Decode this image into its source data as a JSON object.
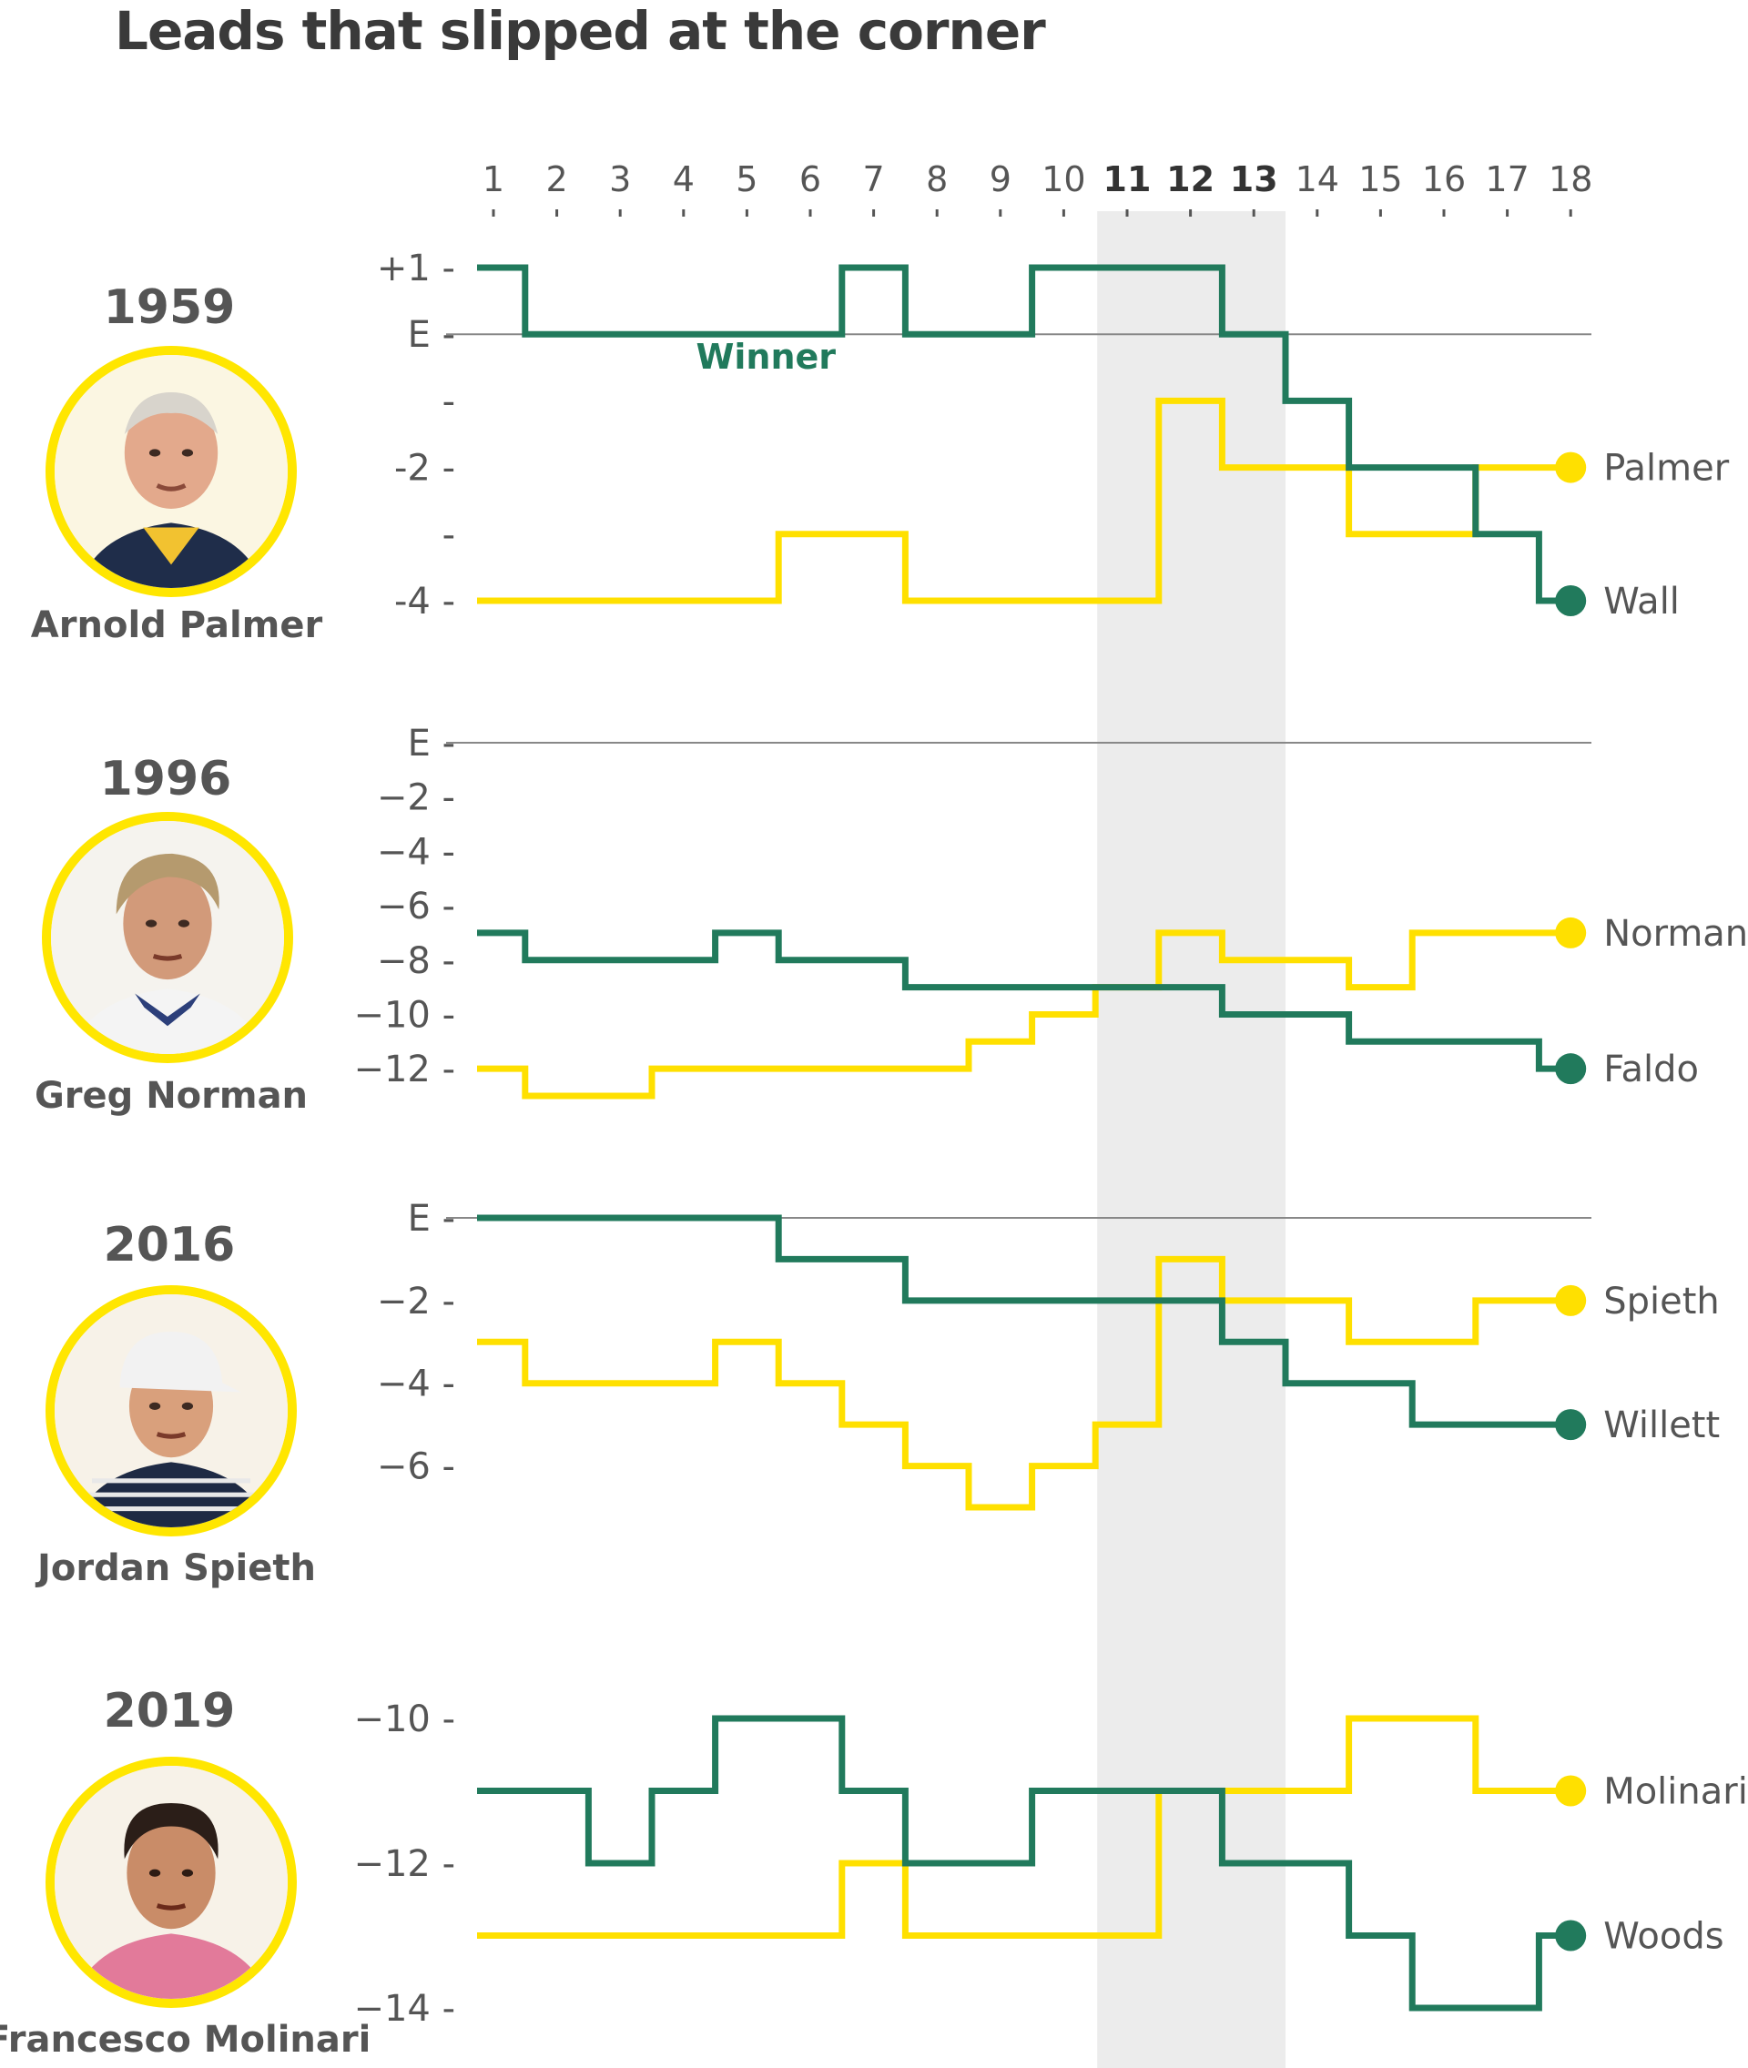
{
  "title": "Leads that slipped at the corner",
  "colors": {
    "winner": "#217a5c",
    "leader": "#ffe000",
    "highlight": "#ececec",
    "axis": "#555555"
  },
  "chart_data": {
    "type": "line",
    "title": "Leads that slipped at the corner",
    "x": [
      1,
      2,
      3,
      4,
      5,
      6,
      7,
      8,
      9,
      10,
      11,
      12,
      13,
      14,
      15,
      16,
      17,
      18
    ],
    "highlighted_holes": [
      11,
      12,
      13
    ],
    "panels": [
      {
        "year": "1959",
        "player": "Arnold Palmer",
        "portrait_icon": "arnold-palmer-portrait",
        "ylim": [
          -4,
          1
        ],
        "yticks": [
          1,
          0,
          -1,
          -2,
          -3,
          -4
        ],
        "ytick_labels": [
          "+1",
          "E",
          "",
          "-2",
          "",
          "-4"
        ],
        "winner_note": "Winner",
        "series": [
          {
            "name": "Palmer",
            "role": "leader",
            "values": [
              -4,
              -4,
              -4,
              -4,
              -4,
              -3,
              -3,
              -4,
              -4,
              -4,
              -4,
              -1,
              -2,
              -2,
              -3,
              -3,
              -2,
              -2
            ]
          },
          {
            "name": "Wall",
            "role": "winner",
            "values": [
              1,
              0,
              0,
              0,
              0,
              0,
              1,
              0,
              0,
              1,
              1,
              1,
              0,
              -1,
              -2,
              -2,
              -3,
              -4
            ]
          }
        ]
      },
      {
        "year": "1996",
        "player": "Greg Norman",
        "portrait_icon": "greg-norman-portrait",
        "ylim": [
          -13,
          0
        ],
        "yticks": [
          0,
          -2,
          -4,
          -6,
          -8,
          -10,
          -12
        ],
        "ytick_labels": [
          "E",
          "−2",
          "−4",
          "−6",
          "−8",
          "−10",
          "−12"
        ],
        "series": [
          {
            "name": "Norman",
            "role": "leader",
            "values": [
              -12,
              -13,
              -13,
              -12,
              -12,
              -12,
              -12,
              -12,
              -11,
              -10,
              -9,
              -7,
              -8,
              -8,
              -9,
              -7,
              -7,
              -7
            ]
          },
          {
            "name": "Faldo",
            "role": "winner",
            "values": [
              -7,
              -8,
              -8,
              -8,
              -7,
              -8,
              -8,
              -9,
              -9,
              -9,
              -9,
              -9,
              -10,
              -10,
              -11,
              -11,
              -11,
              -12
            ]
          }
        ]
      },
      {
        "year": "2016",
        "player": "Jordan Spieth",
        "portrait_icon": "jordan-spieth-portrait",
        "ylim": [
          -7,
          0
        ],
        "yticks": [
          0,
          -2,
          -4,
          -6
        ],
        "ytick_labels": [
          "E",
          "−2",
          "−4",
          "−6"
        ],
        "series": [
          {
            "name": "Spieth",
            "role": "leader",
            "values": [
              -3,
              -4,
              -4,
              -4,
              -3,
              -4,
              -5,
              -6,
              -7,
              -6,
              -5,
              -1,
              -2,
              -2,
              -3,
              -3,
              -2,
              -2
            ]
          },
          {
            "name": "Willett",
            "role": "winner",
            "values": [
              0,
              0,
              0,
              0,
              0,
              -1,
              -1,
              -2,
              -2,
              -2,
              -2,
              -2,
              -3,
              -4,
              -4,
              -5,
              -5,
              -5
            ]
          }
        ]
      },
      {
        "year": "2019",
        "player": "Francesco Molinari",
        "portrait_icon": "francesco-molinari-portrait",
        "ylim": [
          -14,
          -10
        ],
        "yticks": [
          -10,
          -12,
          -14
        ],
        "ytick_labels": [
          "−10",
          "−12",
          "−14"
        ],
        "series": [
          {
            "name": "Molinari",
            "role": "leader",
            "values": [
              -13,
              -13,
              -13,
              -13,
              -13,
              -13,
              -12,
              -13,
              -13,
              -13,
              -13,
              -11,
              -11,
              -11,
              -10,
              -10,
              -11,
              -11
            ]
          },
          {
            "name": "Woods",
            "role": "winner",
            "values": [
              -11,
              -11,
              -12,
              -11,
              -10,
              -10,
              -11,
              -12,
              -12,
              -11,
              -11,
              -11,
              -12,
              -12,
              -13,
              -14,
              -14,
              -13
            ]
          }
        ]
      }
    ]
  }
}
